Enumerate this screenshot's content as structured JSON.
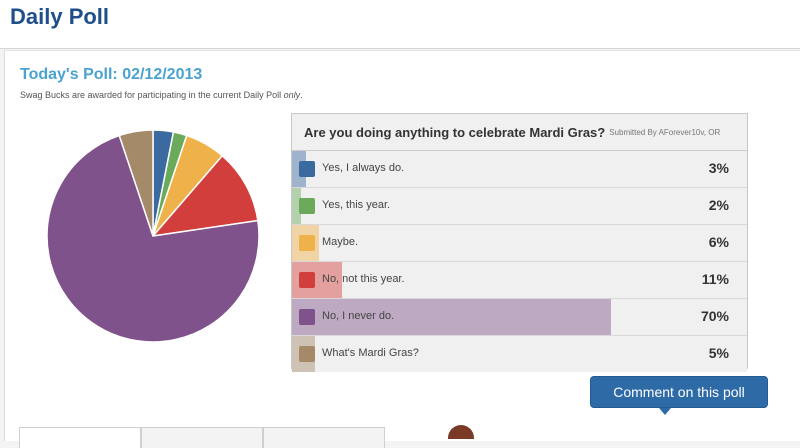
{
  "header": {
    "title": "Daily Poll"
  },
  "poll": {
    "title": "Today's Poll: 02/12/2013",
    "note_main": "Swag Bucks are awarded for participating in the current Daily Poll",
    "note_emphasis": "only",
    "note_end": ".",
    "question": "Are you doing anything to celebrate Mardi Gras?",
    "submitted_by": "Submitted By AForever10v, OR",
    "options": [
      {
        "label": "Yes, I always do.",
        "percent_text": "3%",
        "value": 3,
        "color": "#3b6aa0"
      },
      {
        "label": "Yes, this year.",
        "percent_text": "2%",
        "value": 2,
        "color": "#6aaa5a"
      },
      {
        "label": "Maybe.",
        "percent_text": "6%",
        "value": 6,
        "color": "#efb24a"
      },
      {
        "label": "No, not this year.",
        "percent_text": "11%",
        "value": 11,
        "color": "#d23e3b"
      },
      {
        "label": "No, I never do.",
        "percent_text": "70%",
        "value": 70,
        "color": "#80528c"
      },
      {
        "label": "What's Mardi Gras?",
        "percent_text": "5%",
        "value": 5,
        "color": "#a58a6a"
      }
    ],
    "comment_button": "Comment on this poll"
  },
  "chart_data": {
    "type": "pie",
    "categories": [
      "Yes, I always do.",
      "Yes, this year.",
      "Maybe.",
      "No, not this year.",
      "No, I never do.",
      "What's Mardi Gras?"
    ],
    "values": [
      3,
      2,
      6,
      11,
      70,
      5
    ],
    "colors": [
      "#3b6aa0",
      "#6aaa5a",
      "#efb24a",
      "#d23e3b",
      "#80528c",
      "#a58a6a"
    ],
    "start": "top",
    "direction": "clockwise"
  }
}
